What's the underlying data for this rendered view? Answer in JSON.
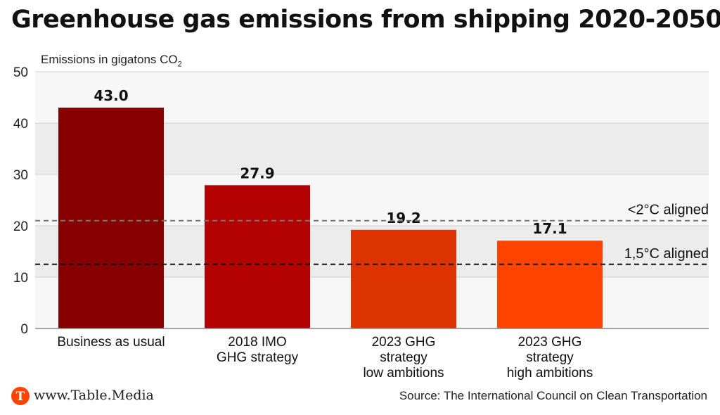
{
  "title": "Greenhouse gas emissions from shipping 2020-2050",
  "footer": {
    "site": "www.Table.Media",
    "logo_letter": "T",
    "source": "Source: The International Council on Clean Transportation"
  },
  "chart_data": {
    "type": "bar",
    "ylabel_main": "Emissions in gigatons CO",
    "ylabel_sub": "2",
    "ylim": [
      0,
      50
    ],
    "yticks": [
      0,
      10,
      20,
      30,
      40,
      50
    ],
    "grid": "alternating bands",
    "categories": [
      [
        "Business as usual"
      ],
      [
        "2018 IMO",
        "GHG strategy"
      ],
      [
        "2023 GHG",
        "strategy",
        "low ambitions"
      ],
      [
        "2023 GHG",
        "strategy",
        "high ambitions"
      ]
    ],
    "values": [
      43.0,
      27.9,
      19.2,
      17.1
    ],
    "value_labels": [
      "43.0",
      "27.9",
      "19.2",
      "17.1"
    ],
    "colors": [
      "#860000",
      "#b30000",
      "#dd3300",
      "#ff4400"
    ],
    "reference_lines": [
      {
        "label": "<2°C aligned",
        "value": 21,
        "color": "#777777"
      },
      {
        "label": "1,5°C aligned",
        "value": 12.5,
        "color": "#111111"
      }
    ]
  }
}
